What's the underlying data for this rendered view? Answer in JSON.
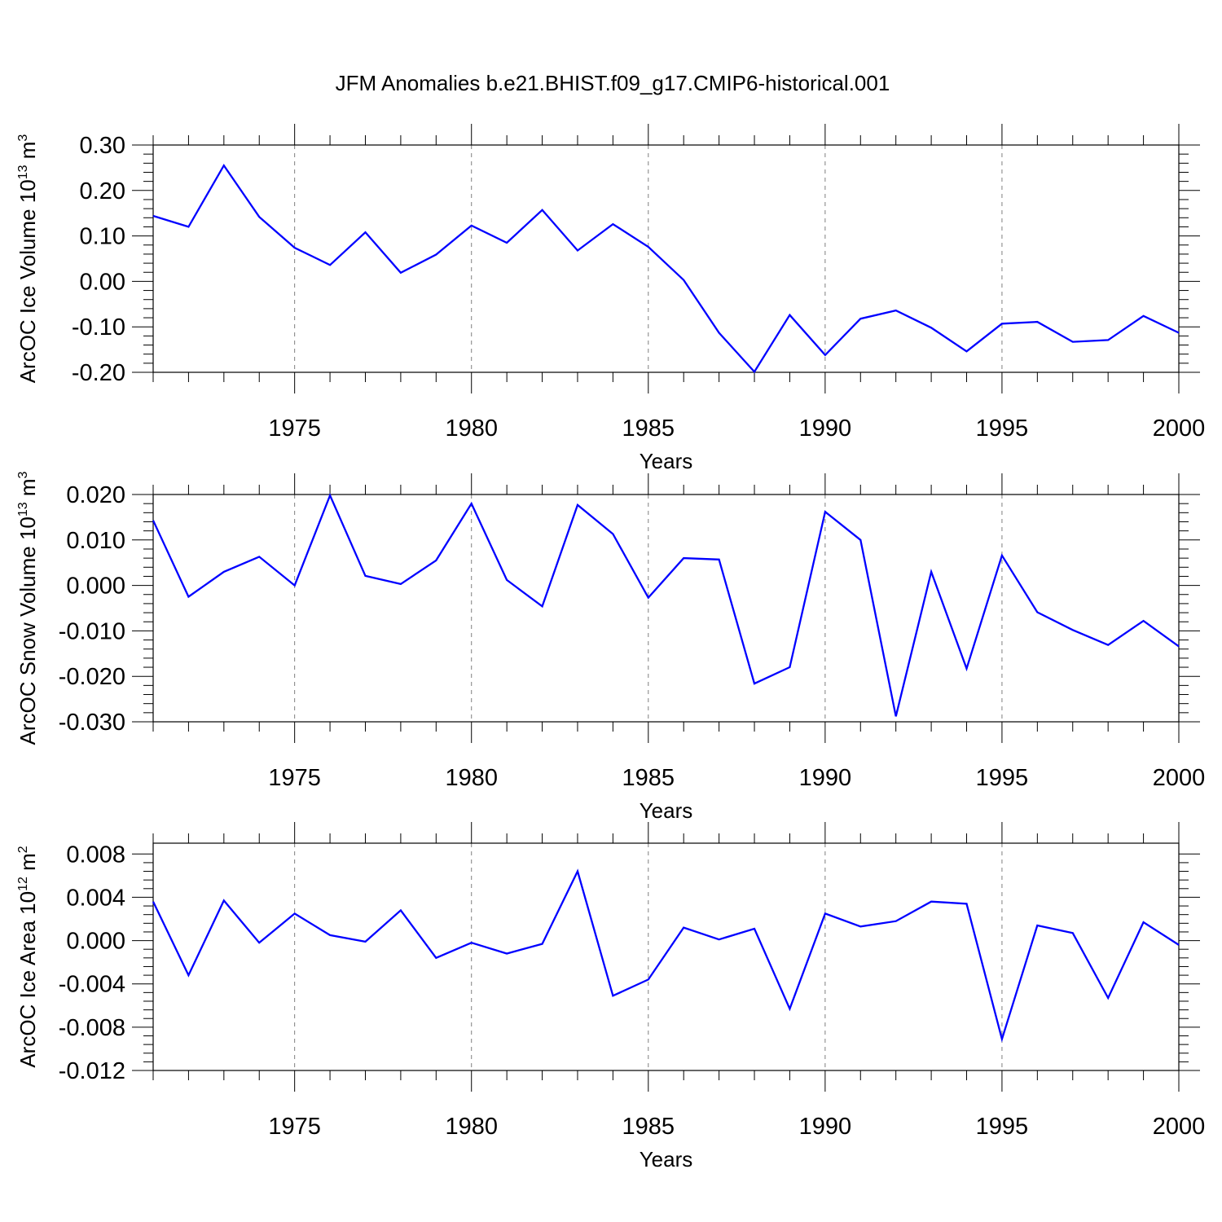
{
  "title": "JFM Anomalies b.e21.BHIST.f09_g17.CMIP6-historical.001",
  "chart_data": [
    {
      "type": "line",
      "ylabel": {
        "text": "ArcOC Ice Volume 10",
        "exp": "13",
        "unit": " m",
        "unit_exp": "3"
      },
      "xlabel": "Years",
      "xlim": [
        1971,
        2000
      ],
      "ylim": [
        -0.2,
        0.3
      ],
      "xticks": [
        1975,
        1980,
        1985,
        1990,
        1995,
        2000
      ],
      "yticks": [
        -0.2,
        -0.1,
        0.0,
        0.1,
        0.2,
        0.3
      ],
      "ytick_labels": [
        "-0.20",
        "-0.10",
        "0.00",
        "0.10",
        "0.20",
        "0.30"
      ],
      "grid": "vertical-dashed",
      "color": "#0000ff",
      "series": [
        {
          "x": [
            1971,
            1972,
            1973,
            1974,
            1975,
            1976,
            1977,
            1978,
            1979,
            1980,
            1981,
            1982,
            1983,
            1984,
            1985,
            1986,
            1987,
            1988,
            1989,
            1990,
            1991,
            1992,
            1993,
            1994,
            1995,
            1996,
            1997,
            1998,
            1999,
            2000
          ],
          "values": [
            0.144,
            0.12,
            0.255,
            0.142,
            0.074,
            0.036,
            0.108,
            0.019,
            0.059,
            0.123,
            0.085,
            0.157,
            0.068,
            0.126,
            0.076,
            0.003,
            -0.113,
            -0.199,
            -0.074,
            -0.162,
            -0.082,
            -0.064,
            -0.102,
            -0.154,
            -0.093,
            -0.089,
            -0.133,
            -0.129,
            -0.076,
            -0.113
          ]
        }
      ]
    },
    {
      "type": "line",
      "ylabel": {
        "text": "ArcOC Snow Volume 10",
        "exp": "13",
        "unit": " m",
        "unit_exp": "3"
      },
      "xlabel": "Years",
      "xlim": [
        1971,
        2000
      ],
      "ylim": [
        -0.03,
        0.02
      ],
      "xticks": [
        1975,
        1980,
        1985,
        1990,
        1995,
        2000
      ],
      "yticks": [
        -0.03,
        -0.02,
        -0.01,
        0.0,
        0.01,
        0.02
      ],
      "ytick_labels": [
        "-0.030",
        "-0.020",
        "-0.010",
        "0.000",
        "0.010",
        "0.020"
      ],
      "grid": "vertical-dashed",
      "color": "#0000ff",
      "series": [
        {
          "x": [
            1971,
            1972,
            1973,
            1974,
            1975,
            1976,
            1977,
            1978,
            1979,
            1980,
            1981,
            1982,
            1983,
            1984,
            1985,
            1986,
            1987,
            1988,
            1989,
            1990,
            1991,
            1992,
            1993,
            1994,
            1995,
            1996,
            1997,
            1998,
            1999,
            2000
          ],
          "values": [
            0.0143,
            -0.0025,
            0.003,
            0.0063,
            0.0,
            0.0198,
            0.0021,
            0.0003,
            0.0055,
            0.018,
            0.0012,
            -0.0046,
            0.0177,
            0.0113,
            -0.0027,
            0.006,
            0.0057,
            -0.0216,
            -0.018,
            0.0162,
            0.01,
            -0.0288,
            0.003,
            -0.0183,
            0.0066,
            -0.0059,
            -0.0098,
            -0.0131,
            -0.0078,
            -0.0134
          ]
        }
      ]
    },
    {
      "type": "line",
      "ylabel": {
        "text": "ArcOC Ice Area 10",
        "exp": "12",
        "unit": " m",
        "unit_exp": "2"
      },
      "xlabel": "Years",
      "xlim": [
        1971,
        2000
      ],
      "ylim": [
        -0.012,
        0.009
      ],
      "xticks": [
        1975,
        1980,
        1985,
        1990,
        1995,
        2000
      ],
      "yticks": [
        -0.012,
        -0.008,
        -0.004,
        0.0,
        0.004,
        0.008
      ],
      "ytick_labels": [
        "-0.012",
        "-0.008",
        "-0.004",
        "0.000",
        "0.004",
        "0.008"
      ],
      "grid": "vertical-dashed",
      "color": "#0000ff",
      "series": [
        {
          "x": [
            1971,
            1972,
            1973,
            1974,
            1975,
            1976,
            1977,
            1978,
            1979,
            1980,
            1981,
            1982,
            1983,
            1984,
            1985,
            1986,
            1987,
            1988,
            1989,
            1990,
            1991,
            1992,
            1993,
            1994,
            1995,
            1996,
            1997,
            1998,
            1999,
            2000
          ],
          "values": [
            0.0036,
            -0.0032,
            0.0037,
            -0.0002,
            0.0025,
            0.0005,
            -0.0001,
            0.0028,
            -0.0016,
            -0.0002,
            -0.0012,
            -0.0003,
            0.0064,
            -0.0051,
            -0.0036,
            0.0012,
            0.0001,
            0.0011,
            -0.0063,
            0.0025,
            0.0013,
            0.0018,
            0.0036,
            0.0034,
            -0.0091,
            0.0014,
            0.0007,
            -0.0053,
            0.0017,
            -0.0004
          ]
        }
      ]
    }
  ]
}
